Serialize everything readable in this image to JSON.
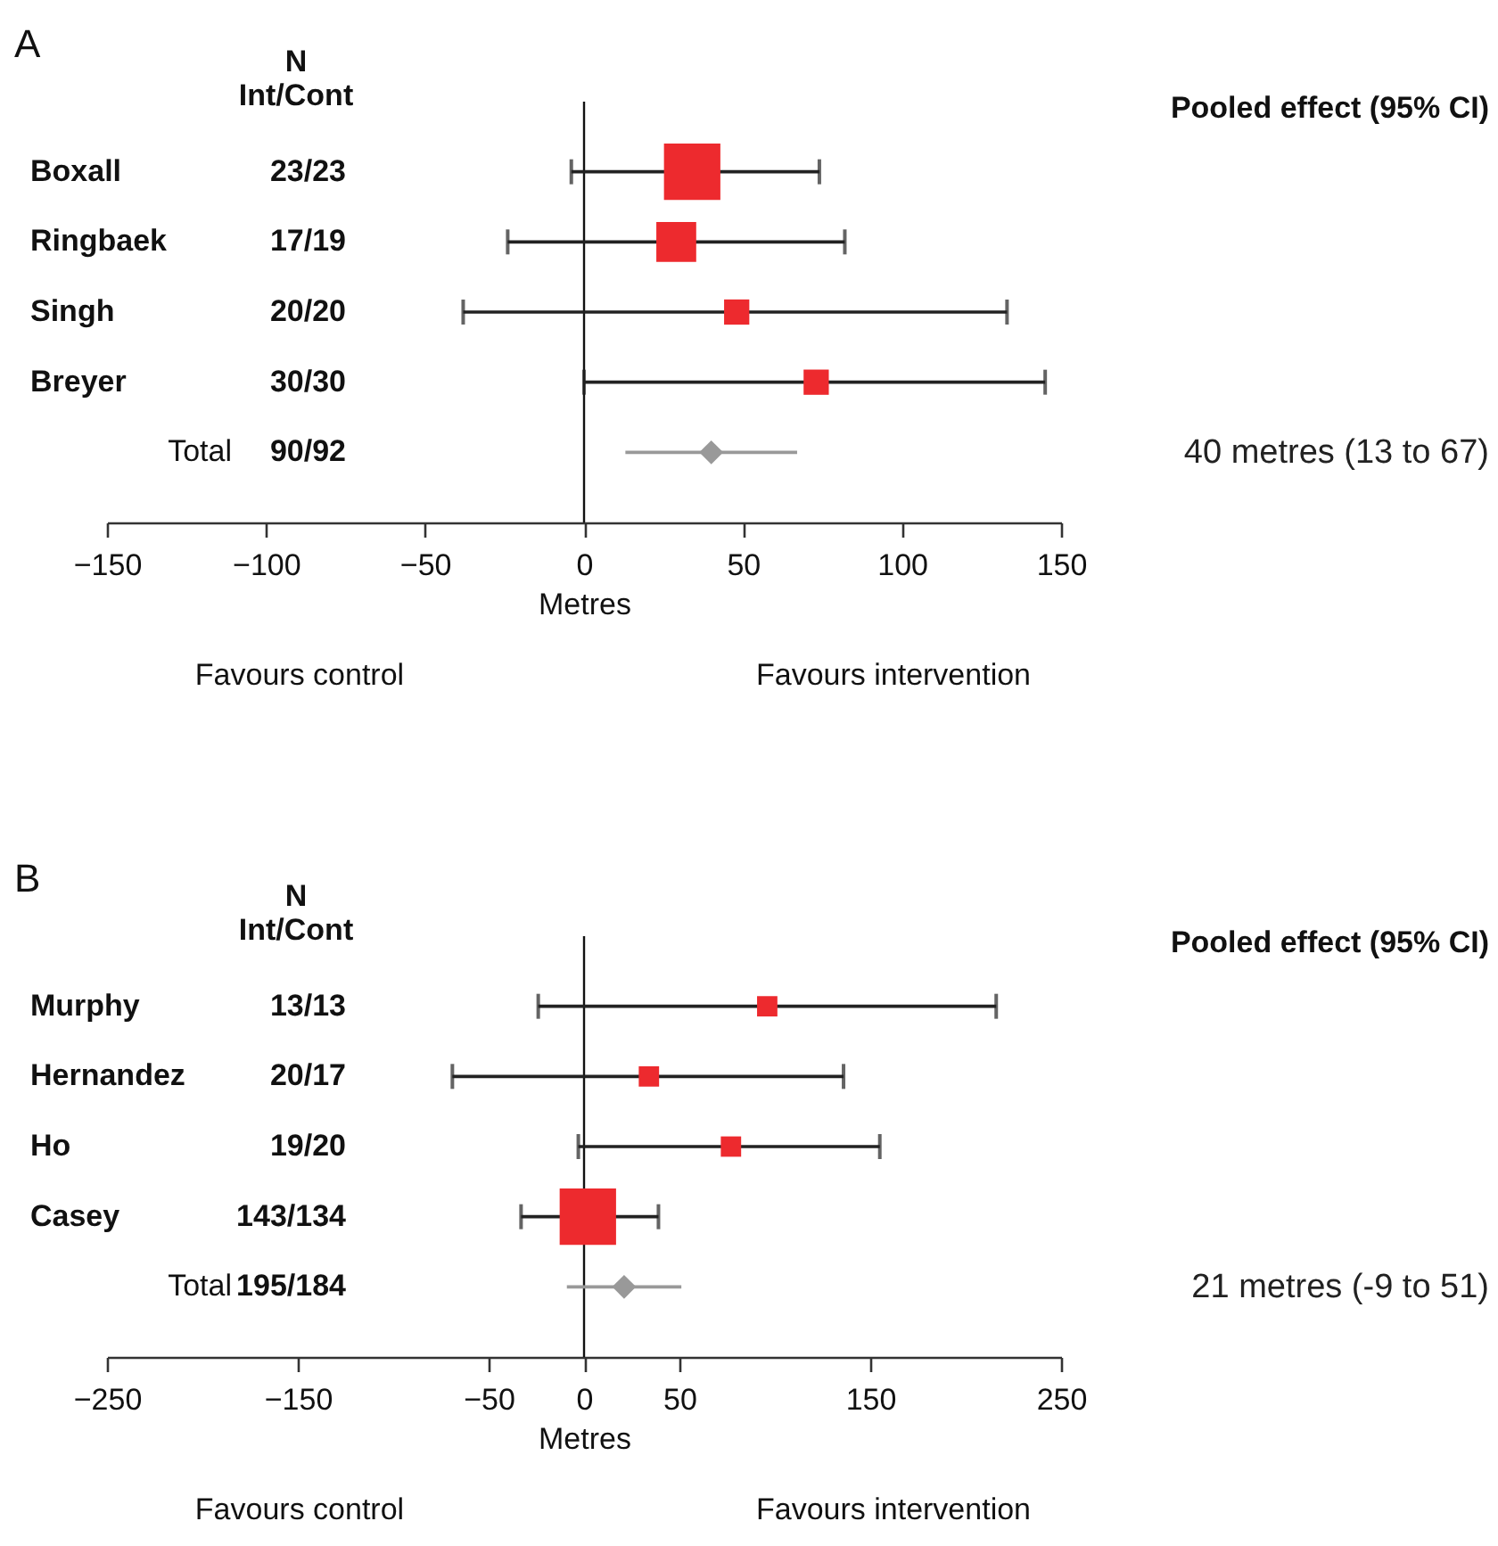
{
  "chart_data": [
    {
      "type": "bubble",
      "title": "A",
      "orientation": "horizontal",
      "categories": [
        "Boxall",
        "Ringbaek",
        "Singh",
        "Breyer",
        "Total"
      ],
      "y2_categories": [
        "23/23",
        "17/19",
        "20/20",
        "30/30",
        "90/92"
      ],
      "xlabel": "Metres",
      "xlim": [
        -150,
        150
      ],
      "xticks": [
        -150,
        -100,
        -50,
        0,
        50,
        100,
        150
      ],
      "tick_labels": "x",
      "grid": false,
      "ref_lines": [
        {
          "axis": "x",
          "value": 0
        }
      ],
      "annotations": [
        "N",
        "Int/Cont",
        "Pooled effect (95% CI)",
        "Favours control",
        "Favours intervention",
        "40 metres (13 to 67)"
      ],
      "series": [
        {
          "type": "bubble",
          "color": "#ed2a2e",
          "marker": "square",
          "values": [
            34,
            29,
            48,
            73,
            null
          ],
          "errors": [
            [
              -4,
              74
            ],
            [
              -24,
              82
            ],
            [
              -38,
              133
            ],
            [
              0,
              145
            ],
            null
          ],
          "sizes": [
            1,
            0.5,
            0.2,
            0.2,
            null
          ]
        },
        {
          "type": "scatter",
          "color": "#999999",
          "marker": "diamond",
          "values": [
            null,
            null,
            null,
            null,
            40
          ],
          "errors": [
            null,
            null,
            null,
            null,
            [
              13,
              67
            ]
          ]
        }
      ]
    },
    {
      "type": "bubble",
      "title": "B",
      "orientation": "horizontal",
      "categories": [
        "Murphy",
        "Hernandez",
        "Ho",
        "Casey",
        "Total"
      ],
      "y2_categories": [
        "13/13",
        "20/17",
        "19/20",
        "143/134",
        "195/184"
      ],
      "xlabel": "Metres",
      "xlim": [
        -250,
        250
      ],
      "xticks": [
        -250,
        -150,
        -50,
        0,
        50,
        150,
        250
      ],
      "tick_labels": "x",
      "grid": false,
      "ref_lines": [
        {
          "axis": "x",
          "value": 0
        }
      ],
      "annotations": [
        "N",
        "Int/Cont",
        "Pooled effect (95% CI)",
        "Favours control",
        "Favours intervention",
        "21 metres (-9 to 51)"
      ],
      "series": [
        {
          "type": "bubble",
          "color": "#ed2a2e",
          "marker": "square",
          "values": [
            96,
            34,
            77,
            2,
            null
          ],
          "errors": [
            [
              -24,
              216
            ],
            [
              -69,
              136
            ],
            [
              -3,
              155
            ],
            [
              -33,
              39
            ],
            null
          ],
          "sizes": [
            0.13,
            0.13,
            0.13,
            1,
            null
          ]
        },
        {
          "type": "scatter",
          "color": "#999999",
          "marker": "diamond",
          "values": [
            null,
            null,
            null,
            null,
            21
          ],
          "errors": [
            null,
            null,
            null,
            null,
            [
              -9,
              51
            ]
          ]
        }
      ]
    }
  ]
}
